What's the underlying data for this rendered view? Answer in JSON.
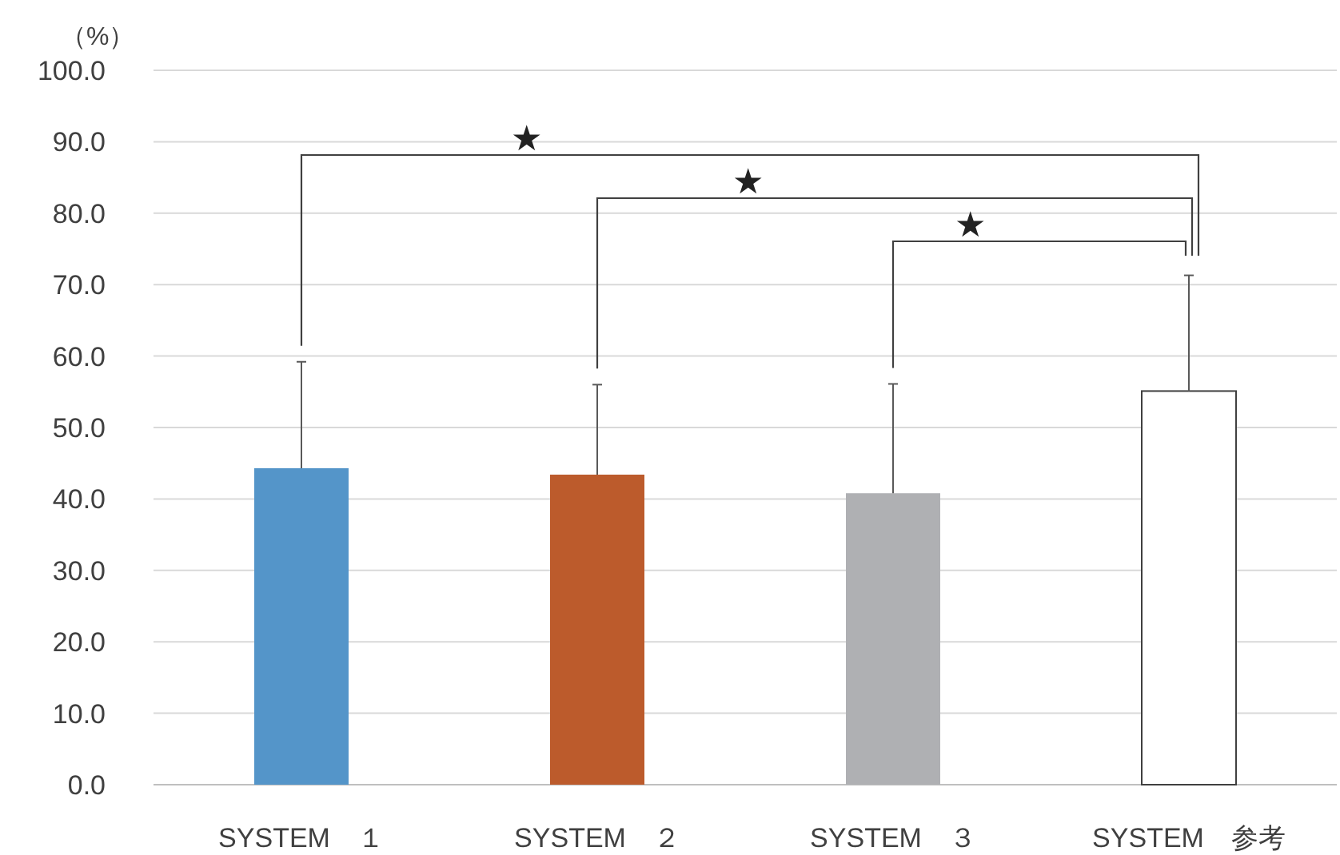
{
  "chart_data": {
    "type": "bar",
    "ylabel": "（%）",
    "categories": [
      "SYSTEM　１",
      "SYSTEM　２",
      "SYSTEM　３",
      "SYSTEM　参考"
    ],
    "values": [
      44.3,
      43.4,
      40.8,
      55.1
    ],
    "colors": [
      "#5495c9",
      "#bc5b2c",
      "#afb0b3",
      "#ffffff"
    ],
    "errors": [
      [
        44.3,
        59.2
      ],
      [
        43.4,
        56.0
      ],
      [
        40.8,
        56.1
      ],
      [
        55.1,
        71.3
      ]
    ],
    "ylim": [
      0,
      100
    ],
    "yticks": [
      {
        "value": 0,
        "label": "0.0"
      },
      {
        "value": 10,
        "label": "10.0"
      },
      {
        "value": 20,
        "label": "20.0"
      },
      {
        "value": 30,
        "label": "30.0"
      },
      {
        "value": 40,
        "label": "40.0"
      },
      {
        "value": 50,
        "label": "50.0"
      },
      {
        "value": 60,
        "label": "60.0"
      },
      {
        "value": 70,
        "label": "70.0"
      },
      {
        "value": 80,
        "label": "80.0"
      },
      {
        "value": 90,
        "label": "90.0"
      },
      {
        "value": 100,
        "label": "100.0"
      }
    ],
    "grid": "y",
    "annotations": [
      "★",
      "★",
      "★"
    ]
  }
}
